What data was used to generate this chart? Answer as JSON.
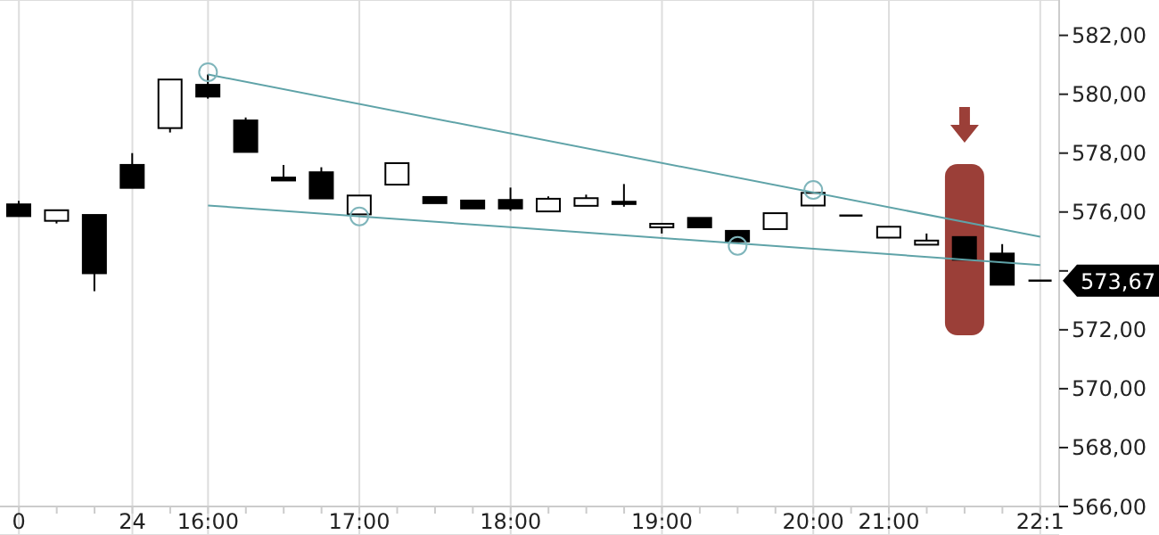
{
  "chart_data": {
    "type": "candlestick",
    "color": "#000000",
    "categories": [
      "0",
      null,
      null,
      "24",
      null,
      "16:00",
      null,
      null,
      null,
      "17:00",
      null,
      null,
      null,
      "18:00",
      null,
      null,
      null,
      "19:00",
      null,
      null,
      null,
      "20:00",
      null,
      "21:00",
      null,
      null,
      null,
      "22:1"
    ],
    "ohlc": [
      [
        576.26,
        576.38,
        575.86,
        575.86
      ],
      [
        575.7,
        576.06,
        575.61,
        576.06
      ],
      [
        575.9,
        575.9,
        573.31,
        573.92
      ],
      [
        577.6,
        578.0,
        576.82,
        576.82
      ],
      [
        578.85,
        580.5,
        578.7,
        580.5
      ],
      [
        580.32,
        580.67,
        579.85,
        579.92
      ],
      [
        579.11,
        579.21,
        578.04,
        578.04
      ],
      [
        577.17,
        577.6,
        577.07,
        577.07
      ],
      [
        577.35,
        577.52,
        576.46,
        576.46
      ],
      [
        575.92,
        576.56,
        575.92,
        576.56
      ],
      [
        576.93,
        577.66,
        576.93,
        577.66
      ],
      [
        576.51,
        576.51,
        576.3,
        576.3
      ],
      [
        576.39,
        576.39,
        576.12,
        576.12
      ],
      [
        576.41,
        576.83,
        576.04,
        576.12
      ],
      [
        576.02,
        576.53,
        576.02,
        576.45
      ],
      [
        576.21,
        576.59,
        576.21,
        576.47
      ],
      [
        576.35,
        576.95,
        576.18,
        576.27
      ],
      [
        575.48,
        575.6,
        575.27,
        575.6
      ],
      [
        575.8,
        575.8,
        575.48,
        575.48
      ],
      [
        575.36,
        575.36,
        575.0,
        575.0
      ],
      [
        575.42,
        575.96,
        575.42,
        575.96
      ],
      [
        576.22,
        576.65,
        576.22,
        576.65
      ],
      [
        575.88,
        575.88,
        575.88,
        575.88
      ],
      [
        575.13,
        575.5,
        575.13,
        575.5
      ],
      [
        574.89,
        575.27,
        574.89,
        575.03
      ],
      [
        575.15,
        575.15,
        574.38,
        574.38
      ],
      [
        574.59,
        574.91,
        573.53,
        573.53
      ],
      [
        573.67,
        573.67,
        573.67,
        573.67
      ]
    ],
    "series": [
      {
        "type": "line",
        "color": "#5fa3a8",
        "values": [
          null,
          null,
          null,
          null,
          null,
          580.67,
          null,
          null,
          null,
          null,
          null,
          null,
          null,
          null,
          null,
          null,
          null,
          null,
          null,
          null,
          null,
          null,
          null,
          null,
          null,
          null,
          null,
          575.16
        ]
      },
      {
        "type": "line",
        "color": "#5fa3a8",
        "values": [
          null,
          null,
          null,
          null,
          null,
          576.22,
          null,
          null,
          null,
          null,
          null,
          null,
          null,
          null,
          null,
          null,
          null,
          null,
          null,
          null,
          null,
          null,
          null,
          null,
          null,
          null,
          null,
          574.2
        ]
      },
      {
        "type": "scatter",
        "color": "#7fb5bb",
        "marker": "circle",
        "values": [
          null,
          null,
          null,
          null,
          null,
          580.75,
          null,
          null,
          null,
          575.85,
          null,
          null,
          null,
          null,
          null,
          null,
          null,
          null,
          null,
          574.85,
          null,
          576.75,
          null,
          null,
          null,
          null,
          null,
          null
        ]
      }
    ],
    "ylim": [
      566,
      583.2
    ],
    "yticks": [
      {
        "value": 566,
        "label": "566,00"
      },
      {
        "value": 568,
        "label": "568,00"
      },
      {
        "value": 570,
        "label": "570,00"
      },
      {
        "value": 572,
        "label": "572,00"
      },
      {
        "value": 574,
        "label": null
      },
      {
        "value": 576,
        "label": "576,00"
      },
      {
        "value": 578,
        "label": "578,00"
      },
      {
        "value": 580,
        "label": "580,00"
      },
      {
        "value": 582,
        "label": "582,00"
      }
    ],
    "grid": true,
    "annotations": [
      "573,67"
    ]
  }
}
